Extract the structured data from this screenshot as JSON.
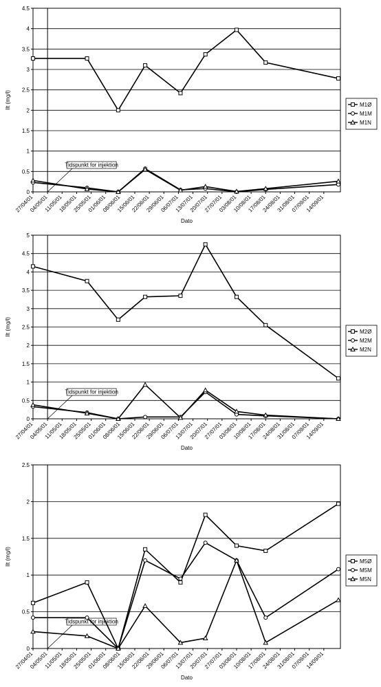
{
  "chart_data": [
    {
      "type": "line",
      "ylabel": "Ilt (mg/l)",
      "xlabel": "Dato",
      "legend": "right",
      "grid": true,
      "xlim": [
        "27/04/01",
        "22/09/01"
      ],
      "xticks": [
        "27/04/01",
        "04/05/01",
        "11/05/01",
        "18/05/01",
        "25/05/01",
        "01/06/01",
        "08/06/01",
        "15/06/01",
        "22/06/01",
        "29/06/01",
        "06/07/01",
        "13/07/01",
        "20/07/01",
        "27/07/01",
        "03/08/01",
        "10/08/01",
        "17/08/01",
        "24/08/01",
        "31/08/01",
        "07/09/01",
        "14/09/01"
      ],
      "ylim": [
        0,
        4.5
      ],
      "yticks": [
        0,
        0.5,
        1,
        1.5,
        2,
        2.5,
        3,
        3.5,
        4,
        4.5
      ],
      "annotations": [
        {
          "text": "Tidspunkt for injektion",
          "x": "04/05/01"
        }
      ],
      "x": [
        "27/04/01",
        "23/05/01",
        "07/06/01",
        "20/06/01",
        "07/07/01",
        "19/07/01",
        "03/08/01",
        "17/08/01",
        "21/09/01"
      ],
      "series": [
        {
          "name": "M1Ø",
          "color": "#000000",
          "marker": "square",
          "values": [
            3.27,
            3.27,
            2.0,
            3.1,
            2.42,
            3.37,
            3.97,
            3.17,
            2.78
          ]
        },
        {
          "name": "M1M",
          "color": "#000000",
          "marker": "circle",
          "values": [
            0.23,
            0.1,
            0.0,
            0.57,
            0.05,
            0.08,
            0.0,
            0.06,
            0.18
          ]
        },
        {
          "name": "M1N",
          "color": "#000000",
          "marker": "triangle",
          "values": [
            0.28,
            0.07,
            0.0,
            0.55,
            0.04,
            0.13,
            0.01,
            0.08,
            0.26
          ]
        }
      ]
    },
    {
      "type": "line",
      "ylabel": "Ilt (mg/l)",
      "xlabel": "Dato",
      "legend": "right",
      "grid": true,
      "xlim": [
        "27/04/01",
        "22/09/01"
      ],
      "xticks": [
        "27/04/01",
        "04/05/01",
        "11/05/01",
        "18/05/01",
        "25/05/01",
        "01/06/01",
        "08/06/01",
        "15/06/01",
        "22/06/01",
        "29/06/01",
        "06/07/01",
        "13/07/01",
        "20/07/01",
        "27/07/01",
        "03/08/01",
        "10/08/01",
        "17/08/01",
        "24/08/01",
        "31/08/01",
        "07/09/01",
        "14/09/01"
      ],
      "ylim": [
        0,
        5
      ],
      "yticks": [
        0,
        0.5,
        1,
        1.5,
        2,
        2.5,
        3,
        3.5,
        4,
        4.5,
        5
      ],
      "annotations": [
        {
          "text": "Tidspunkt for injektion",
          "x": "04/05/01"
        }
      ],
      "x": [
        "27/04/01",
        "23/05/01",
        "07/06/01",
        "20/06/01",
        "07/07/01",
        "19/07/01",
        "03/08/01",
        "17/08/01",
        "21/09/01"
      ],
      "series": [
        {
          "name": "M2Ø",
          "color": "#000000",
          "marker": "square",
          "values": [
            4.15,
            3.75,
            2.7,
            3.32,
            3.35,
            4.75,
            3.32,
            2.55,
            1.1
          ]
        },
        {
          "name": "M2M",
          "color": "#000000",
          "marker": "circle",
          "values": [
            0.33,
            0.17,
            0.0,
            0.05,
            0.05,
            0.73,
            0.12,
            0.08,
            0.0
          ]
        },
        {
          "name": "M2N",
          "color": "#000000",
          "marker": "triangle",
          "values": [
            0.38,
            0.15,
            0.0,
            0.93,
            0.03,
            0.78,
            0.2,
            0.1,
            0.0
          ]
        }
      ]
    },
    {
      "type": "line",
      "ylabel": "Ilt (mg/l)",
      "xlabel": "Dato",
      "legend": "right",
      "grid": true,
      "xlim": [
        "27/04/01",
        "22/09/01"
      ],
      "xticks": [
        "27/04/01",
        "04/05/01",
        "11/05/01",
        "18/05/01",
        "25/05/01",
        "01/06/01",
        "08/06/01",
        "15/06/01",
        "22/06/01",
        "29/06/01",
        "06/07/01",
        "13/07/01",
        "20/07/01",
        "27/07/01",
        "03/08/01",
        "10/08/01",
        "17/08/01",
        "24/08/01",
        "31/08/01",
        "07/09/01",
        "14/09/01"
      ],
      "ylim": [
        0,
        2.5
      ],
      "yticks": [
        0,
        0.5,
        1,
        1.5,
        2,
        2.5
      ],
      "annotations": [
        {
          "text": "Tidspunkt for injektion",
          "x": "04/05/01"
        }
      ],
      "x": [
        "27/04/01",
        "23/05/01",
        "07/06/01",
        "20/06/01",
        "07/07/01",
        "19/07/01",
        "03/08/01",
        "17/08/01",
        "21/09/01"
      ],
      "series": [
        {
          "name": "M5Ø",
          "color": "#000000",
          "marker": "square",
          "values": [
            0.62,
            0.9,
            0.0,
            1.35,
            0.9,
            1.82,
            1.4,
            1.33,
            1.97
          ]
        },
        {
          "name": "M5M",
          "color": "#000000",
          "marker": "circle",
          "values": [
            0.42,
            0.42,
            0.0,
            1.2,
            0.95,
            1.44,
            1.2,
            0.42,
            1.08
          ]
        },
        {
          "name": "M5N",
          "color": "#000000",
          "marker": "triangle",
          "values": [
            0.23,
            0.17,
            0.0,
            0.58,
            0.08,
            0.14,
            1.2,
            0.08,
            0.66
          ]
        }
      ]
    }
  ]
}
